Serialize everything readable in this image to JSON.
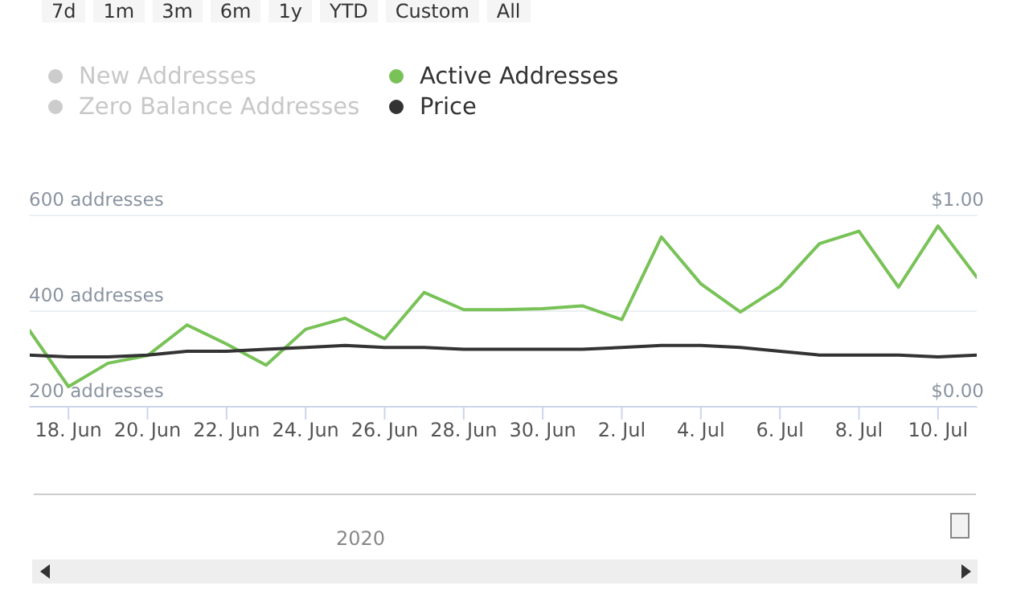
{
  "chart_data": {
    "type": "line",
    "annotations": [
      "7d",
      "1m",
      "3m",
      "6m",
      "1y",
      "YTD",
      "Custom",
      "All",
      "2020"
    ],
    "x": [
      "2020-06-17",
      "2020-06-18",
      "2020-06-19",
      "2020-06-20",
      "2020-06-21",
      "2020-06-22",
      "2020-06-23",
      "2020-06-24",
      "2020-06-25",
      "2020-06-26",
      "2020-06-27",
      "2020-06-28",
      "2020-06-29",
      "2020-06-30",
      "2020-07-01",
      "2020-07-02",
      "2020-07-03",
      "2020-07-04",
      "2020-07-05",
      "2020-07-06",
      "2020-07-07",
      "2020-07-08",
      "2020-07-09",
      "2020-07-10",
      "2020-07-11"
    ],
    "series": [
      {
        "name": "New Addresses",
        "color": "#cccccc",
        "values": [
          null,
          null,
          null,
          null,
          null,
          null,
          null,
          null,
          null,
          null,
          null,
          null,
          null,
          null,
          null,
          null,
          null,
          null,
          null,
          null,
          null,
          null,
          null,
          null,
          null
        ]
      },
      {
        "name": "Zero Balance Addresses",
        "color": "#cccccc",
        "values": [
          null,
          null,
          null,
          null,
          null,
          null,
          null,
          null,
          null,
          null,
          null,
          null,
          null,
          null,
          null,
          null,
          null,
          null,
          null,
          null,
          null,
          null,
          null,
          null,
          null
        ]
      },
      {
        "name": "Active Addresses",
        "color": "#78c257",
        "values": [
          361,
          242,
          291,
          307,
          371,
          331,
          287,
          362,
          385,
          342,
          439,
          403,
          403,
          405,
          411,
          382,
          555,
          457,
          398,
          451,
          541,
          567,
          450,
          578,
          469
        ]
      },
      {
        "name": "Price",
        "color": "#333333",
        "axis": "y2",
        "values": [
          0.27,
          0.26,
          0.26,
          0.27,
          0.29,
          0.29,
          0.3,
          0.31,
          0.32,
          0.31,
          0.31,
          0.3,
          0.3,
          0.3,
          0.3,
          0.31,
          0.32,
          0.32,
          0.31,
          0.29,
          0.27,
          0.27,
          0.27,
          0.26,
          0.27
        ]
      }
    ],
    "xlim": [
      "2020-06-17",
      "2020-07-11"
    ],
    "xticks": [
      {
        "value": "2020-06-18",
        "label": "18. Jun"
      },
      {
        "value": "2020-06-20",
        "label": "20. Jun"
      },
      {
        "value": "2020-06-22",
        "label": "22. Jun"
      },
      {
        "value": "2020-06-24",
        "label": "24. Jun"
      },
      {
        "value": "2020-06-26",
        "label": "26. Jun"
      },
      {
        "value": "2020-06-28",
        "label": "28. Jun"
      },
      {
        "value": "2020-06-30",
        "label": "30. Jun"
      },
      {
        "value": "2020-07-02",
        "label": "2. Jul"
      },
      {
        "value": "2020-07-04",
        "label": "4. Jul"
      },
      {
        "value": "2020-07-06",
        "label": "6. Jul"
      },
      {
        "value": "2020-07-08",
        "label": "8. Jul"
      },
      {
        "value": "2020-07-10",
        "label": "10. Jul"
      }
    ],
    "ylim": [
      200,
      600
    ],
    "yticks": [
      {
        "value": 200,
        "label": "200 addresses"
      },
      {
        "value": 400,
        "label": "400 addresses"
      },
      {
        "value": 600,
        "label": "600 addresses"
      }
    ],
    "y2lim": [
      0,
      1
    ],
    "y2ticks": [
      {
        "value": 0,
        "label": "$0.00"
      },
      {
        "value": 1,
        "label": "$1.00"
      }
    ],
    "grid": "y",
    "legend": "top left",
    "marker": "none",
    "line_style": "solid"
  }
}
